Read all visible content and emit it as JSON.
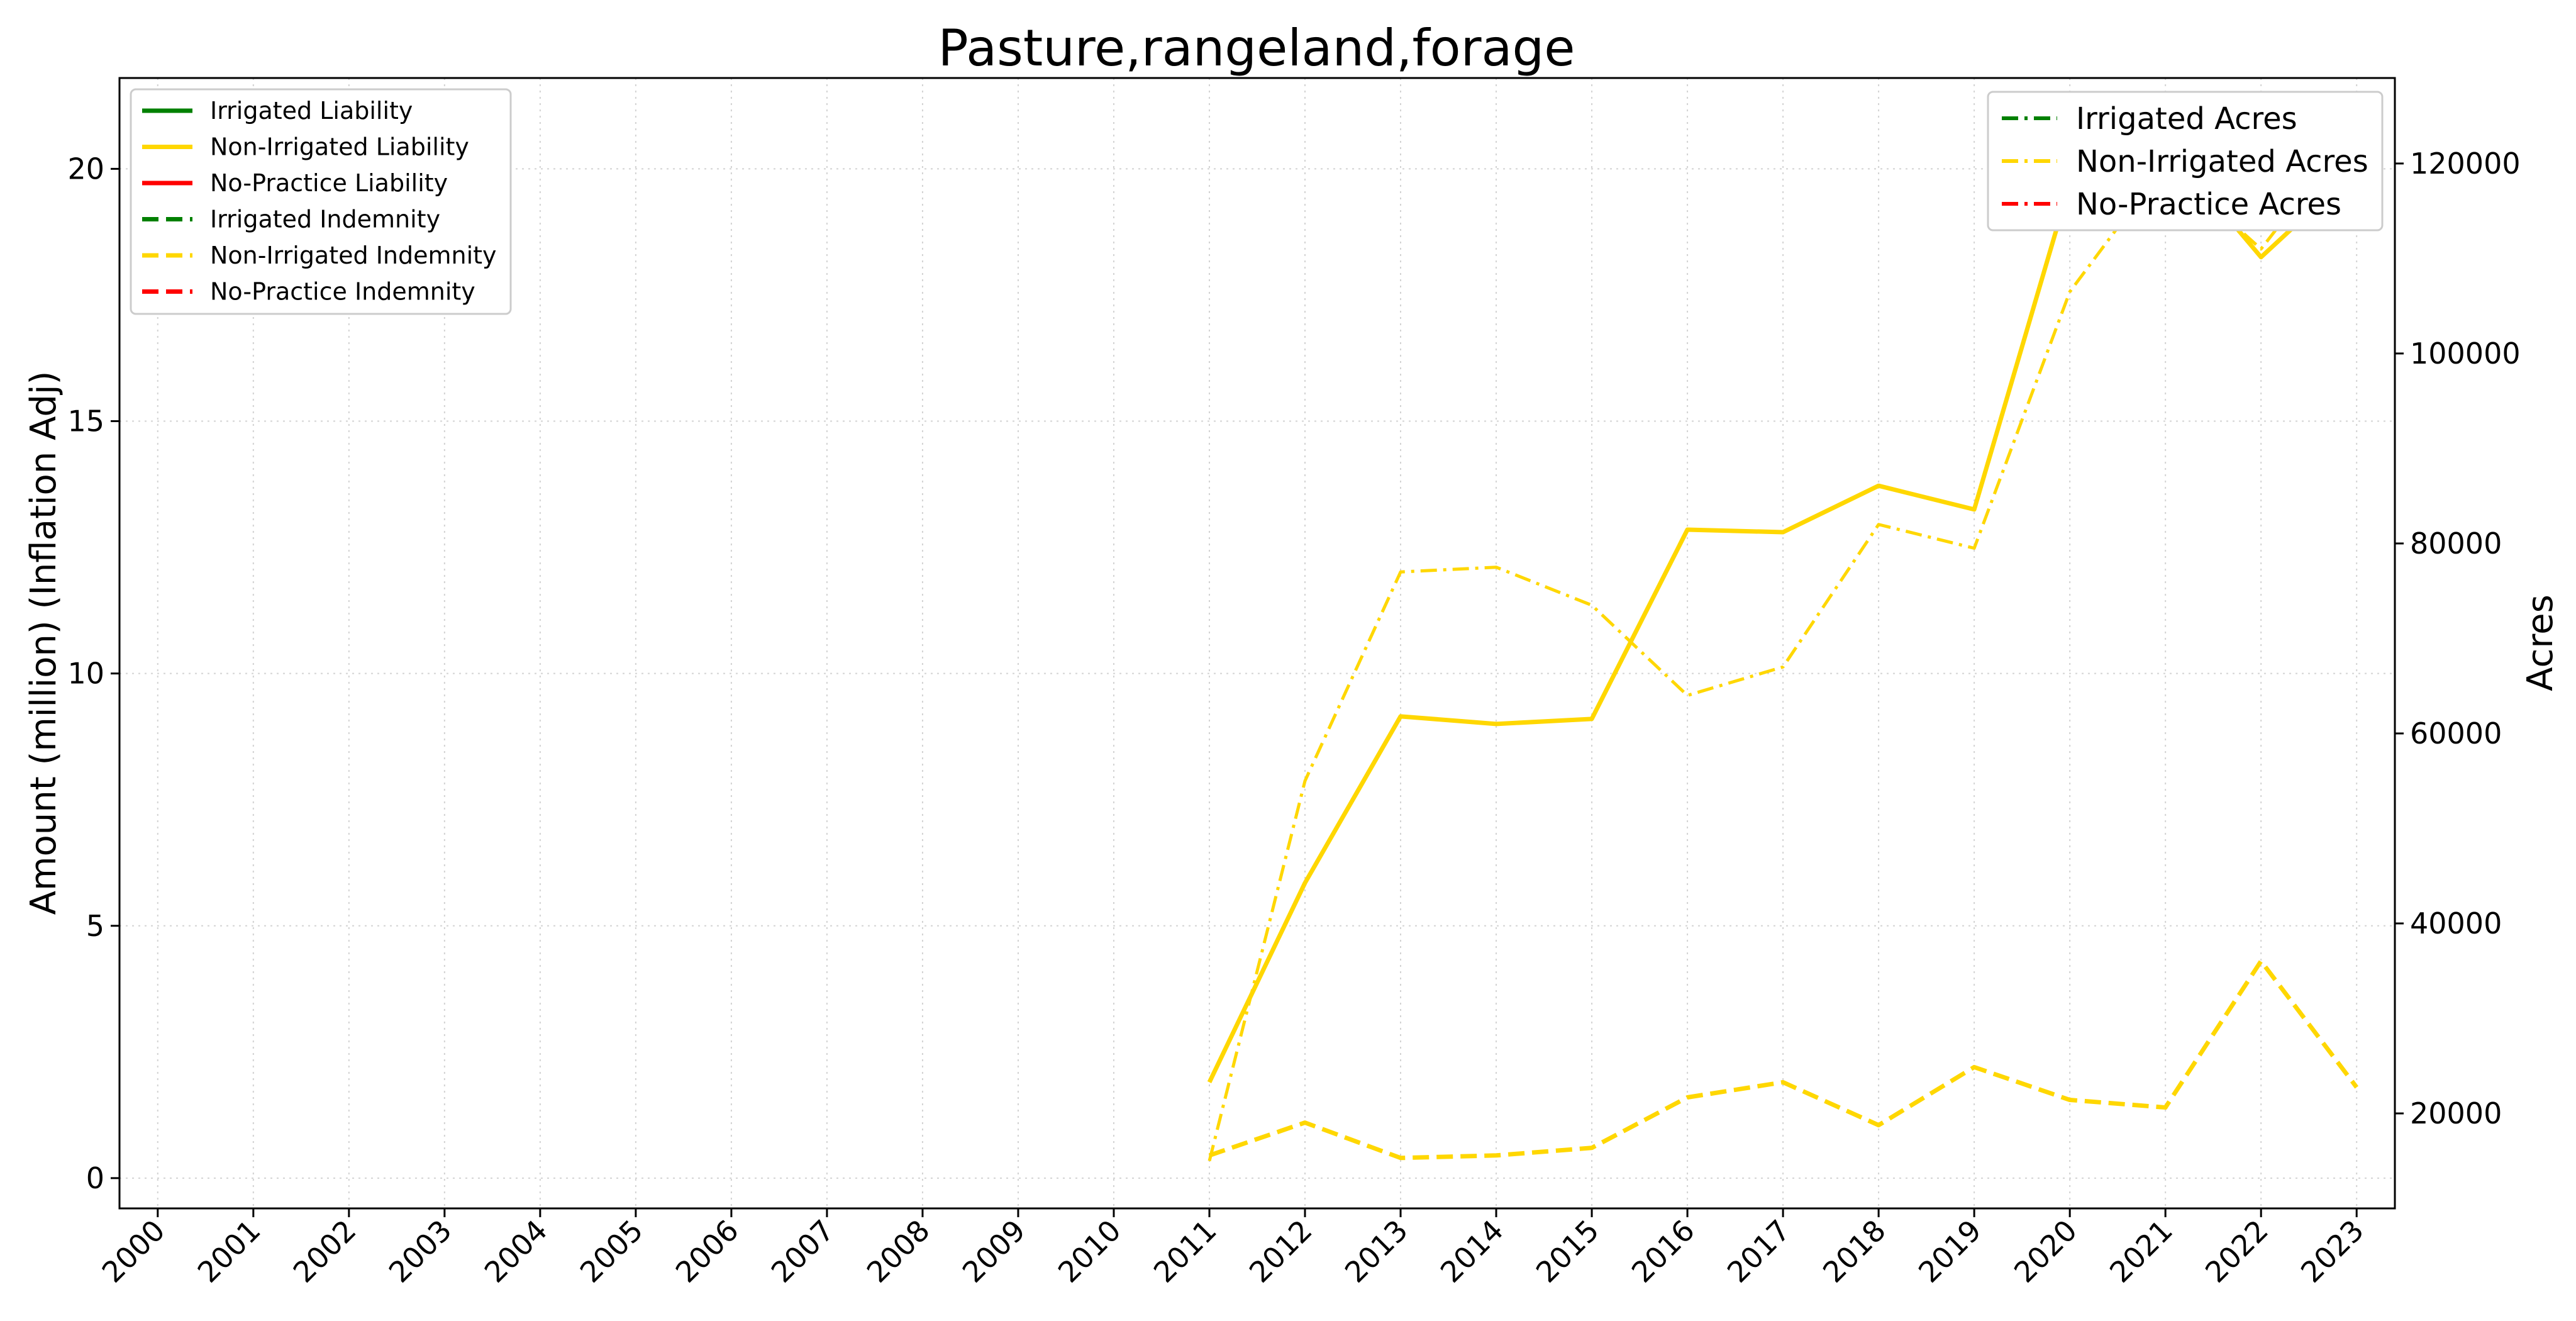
{
  "chart_data": {
    "type": "line",
    "title": "Pasture,rangeland,forage",
    "xlabel": "",
    "ylabel_left": "Amount (million) (Inflation Adj)",
    "ylabel_right": "Acres",
    "x": [
      2000,
      2001,
      2002,
      2003,
      2004,
      2005,
      2006,
      2007,
      2008,
      2009,
      2010,
      2011,
      2012,
      2013,
      2014,
      2015,
      2016,
      2017,
      2018,
      2019,
      2020,
      2021,
      2022,
      2023
    ],
    "x_tick_labels": [
      "2000",
      "2001",
      "2002",
      "2003",
      "2004",
      "2005",
      "2006",
      "2007",
      "2008",
      "2009",
      "2010",
      "2011",
      "2012",
      "2013",
      "2014",
      "2015",
      "2016",
      "2017",
      "2018",
      "2019",
      "2020",
      "2021",
      "2022",
      "2023"
    ],
    "ylim_left": [
      -0.6,
      21.8
    ],
    "yticks_left": [
      0,
      5,
      10,
      15,
      20
    ],
    "ylim_right": [
      10000,
      129000
    ],
    "yticks_right": [
      20000,
      40000,
      60000,
      80000,
      100000,
      120000
    ],
    "grid": true,
    "legend_left_position": "upper-left",
    "legend_right_position": "upper-right",
    "series": [
      {
        "name": "Irrigated Liability",
        "axis": "left",
        "color": "#008000",
        "style": "solid",
        "x": [],
        "values": []
      },
      {
        "name": "Non-Irrigated Liability",
        "axis": "left",
        "color": "#FFD700",
        "style": "solid",
        "x": [
          2011,
          2012,
          2013,
          2014,
          2015,
          2016,
          2017,
          2018,
          2019,
          2020,
          2021,
          2022,
          2023
        ],
        "values": [
          1.9,
          5.85,
          9.15,
          9.0,
          9.1,
          12.85,
          12.8,
          13.72,
          13.25,
          19.7,
          20.5,
          18.25,
          20.0
        ]
      },
      {
        "name": "No-Practice Liability",
        "axis": "left",
        "color": "#FF0000",
        "style": "solid",
        "x": [],
        "values": []
      },
      {
        "name": "Irrigated Indemnity",
        "axis": "left",
        "color": "#008000",
        "style": "dashed",
        "x": [],
        "values": []
      },
      {
        "name": "Non-Irrigated Indemnity",
        "axis": "left",
        "color": "#FFD700",
        "style": "dashed",
        "x": [
          2011,
          2012,
          2013,
          2014,
          2015,
          2016,
          2017,
          2018,
          2019,
          2020,
          2021,
          2022,
          2023
        ],
        "values": [
          0.45,
          1.1,
          0.4,
          0.45,
          0.6,
          1.6,
          1.9,
          1.05,
          2.2,
          1.55,
          1.4,
          4.3,
          1.8
        ]
      },
      {
        "name": "No-Practice Indemnity",
        "axis": "left",
        "color": "#FF0000",
        "style": "dashed",
        "x": [],
        "values": []
      },
      {
        "name": "Irrigated Acres",
        "axis": "right",
        "color": "#008000",
        "style": "dashdot",
        "x": [],
        "values": []
      },
      {
        "name": "Non-Irrigated Acres",
        "axis": "right",
        "color": "#FFD700",
        "style": "dashdot",
        "x": [
          2011,
          2012,
          2013,
          2014,
          2015,
          2016,
          2017,
          2018,
          2019,
          2020,
          2021,
          2022,
          2023
        ],
        "values": [
          15000,
          55000,
          77000,
          77500,
          73500,
          64000,
          67000,
          82000,
          79500,
          106500,
          120000,
          111000,
          124000
        ]
      },
      {
        "name": "No-Practice Acres",
        "axis": "right",
        "color": "#FF0000",
        "style": "dashdot",
        "x": [],
        "values": []
      }
    ],
    "legend_left": [
      "Irrigated Liability",
      "Non-Irrigated Liability",
      "No-Practice Liability",
      "Irrigated Indemnity",
      "Non-Irrigated Indemnity",
      "No-Practice Indemnity"
    ],
    "legend_right": [
      "Irrigated Acres",
      "Non-Irrigated Acres",
      "No-Practice Acres"
    ]
  }
}
